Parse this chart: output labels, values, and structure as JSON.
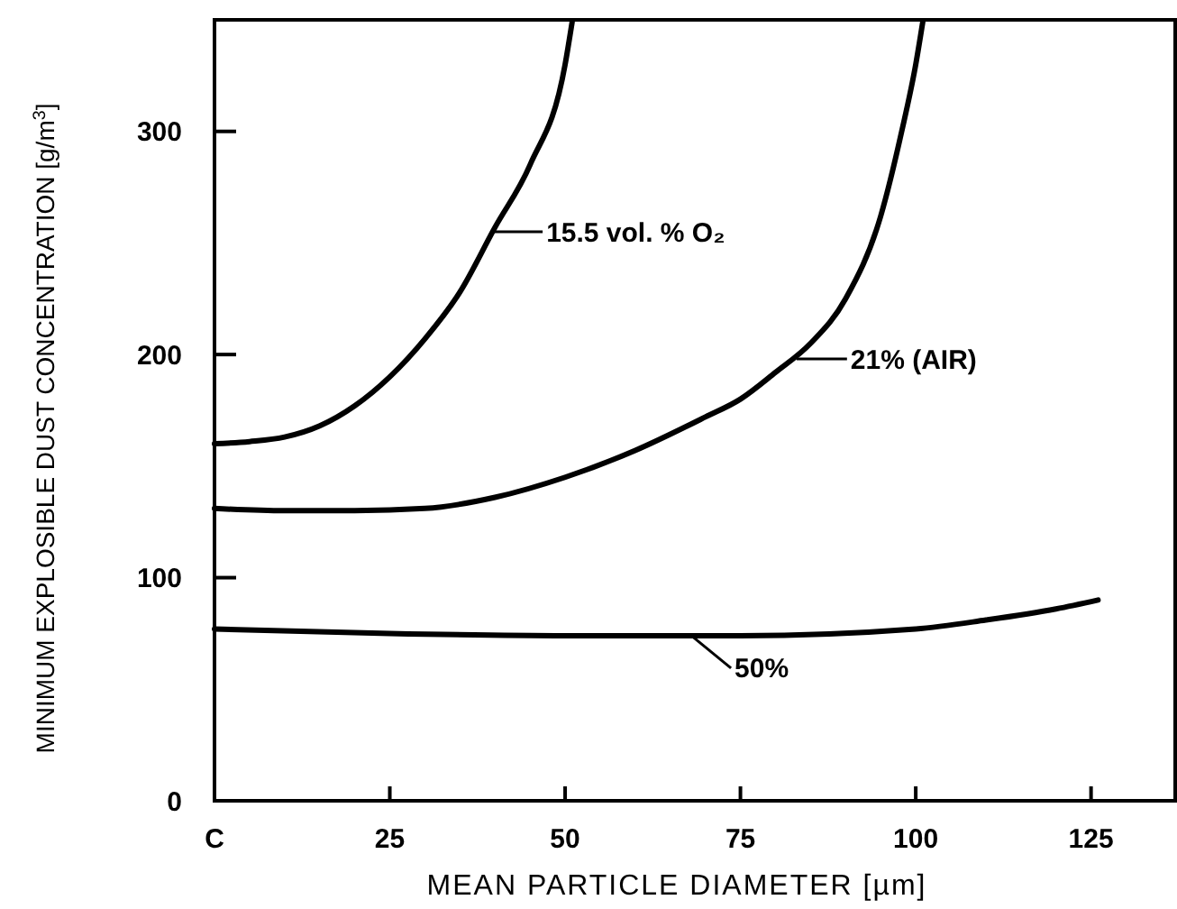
{
  "chart_data": {
    "type": "line",
    "xlabel": "MEAN PARTICLE DIAMETER [µm]",
    "ylabel": "MINIMUM EXPLOSIBLE DUST CONCENTRATION [g/m$^{3}$]",
    "xlim": [
      0,
      137
    ],
    "ylim": [
      0,
      350
    ],
    "xticks": [
      {
        "value": 0,
        "label": "C"
      },
      25,
      50,
      75,
      100,
      125
    ],
    "yticks": [
      0,
      100,
      200,
      300
    ],
    "grid": false,
    "marker": "none",
    "line_style": "solid",
    "series": [
      {
        "color": "#000000",
        "x": [
          0,
          5,
          10,
          15,
          20,
          25,
          30,
          35,
          40,
          45,
          50,
          51
        ],
        "values": [
          160,
          161,
          163,
          168,
          177,
          190,
          207,
          228,
          257,
          285,
          330,
          349
        ]
      },
      {
        "color": "#000000",
        "x": [
          0,
          10,
          20,
          30,
          40,
          50,
          60,
          70,
          75,
          80,
          85,
          90,
          95,
          98,
          100,
          101
        ],
        "values": [
          131,
          130,
          130,
          131,
          136,
          145,
          157,
          172,
          180,
          192,
          205,
          225,
          262,
          300,
          330,
          349
        ]
      },
      {
        "color": "#000000",
        "x": [
          0,
          25,
          50,
          75,
          100,
          110,
          120,
          126
        ],
        "values": [
          77,
          75,
          74,
          74,
          77,
          81,
          86,
          90
        ]
      }
    ],
    "annotations": [
      {
        "text": "15.5 vol. % O₂",
        "x": 39.6,
        "y": 255
      },
      {
        "text": "21% (AIR)",
        "x": 83,
        "y": 198
      },
      {
        "text": "50%",
        "x": 68,
        "y": 74
      }
    ]
  }
}
